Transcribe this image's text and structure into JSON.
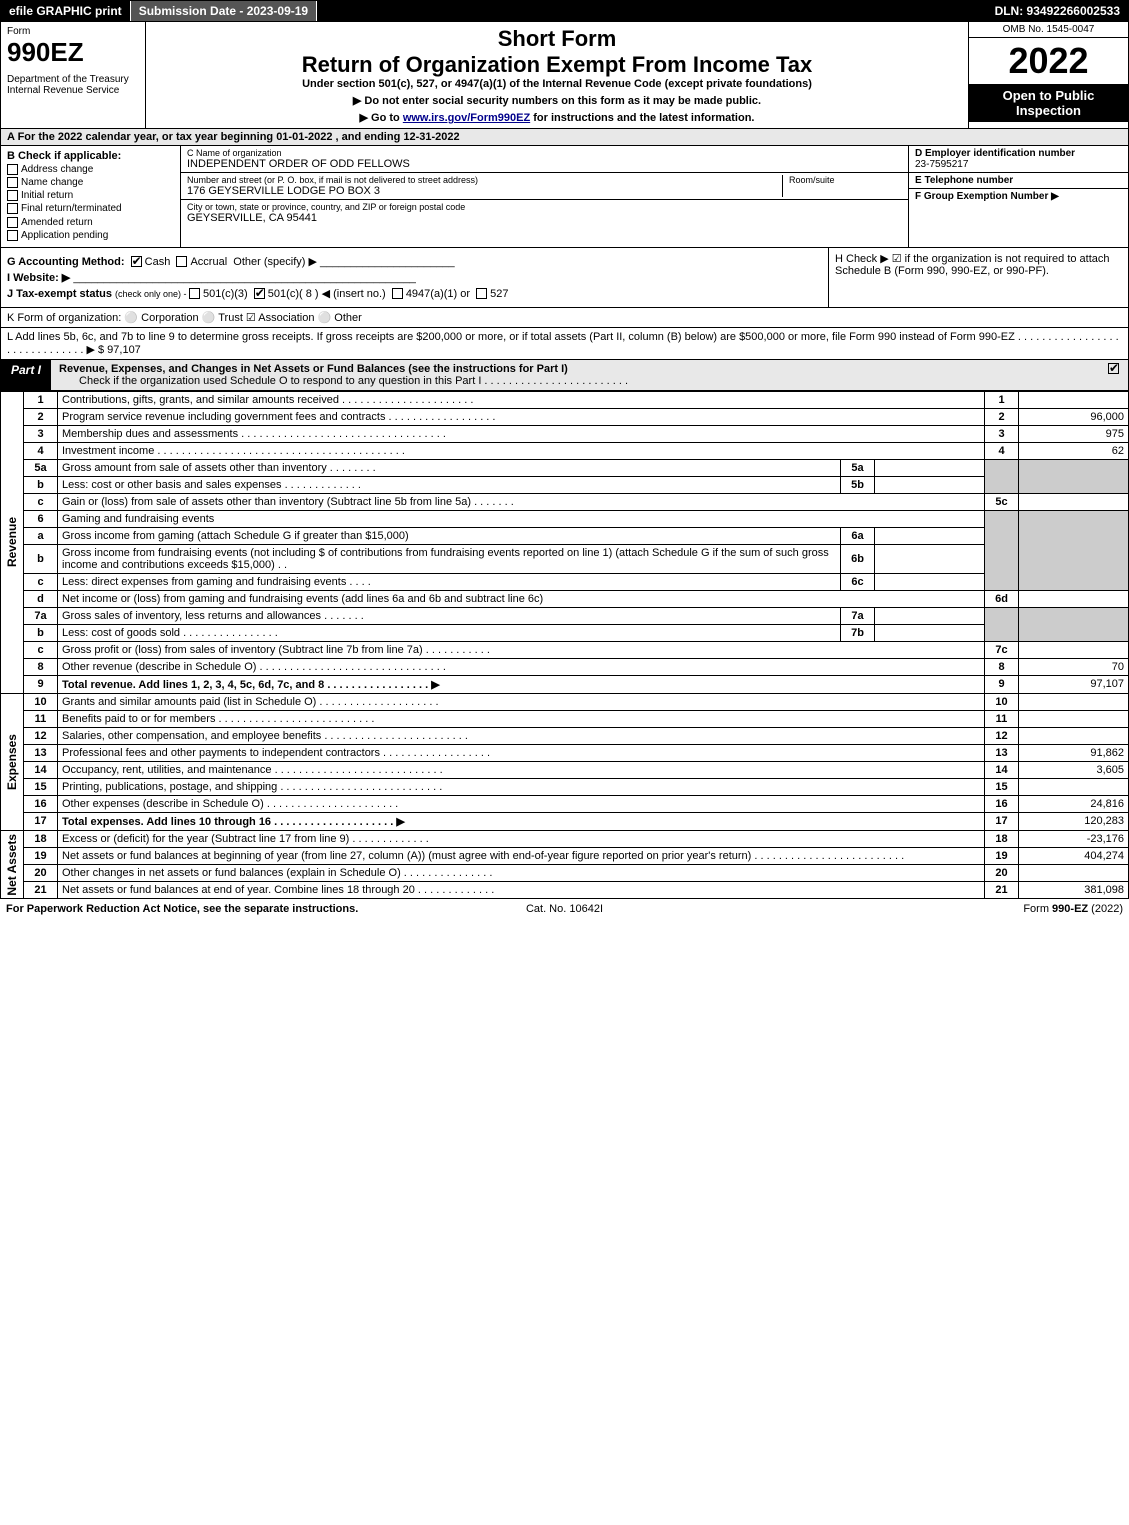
{
  "topbar": {
    "efile": "efile GRAPHIC print",
    "submission": "Submission Date - 2023-09-19",
    "dln": "DLN: 93492266002533"
  },
  "header": {
    "form_label": "Form",
    "form_no": "990EZ",
    "dept": "Department of the Treasury\nInternal Revenue Service",
    "short": "Short Form",
    "title": "Return of Organization Exempt From Income Tax",
    "sub": "Under section 501(c), 527, or 4947(a)(1) of the Internal Revenue Code (except private foundations)",
    "note1": "▶ Do not enter social security numbers on this form as it may be made public.",
    "note2_pre": "▶ Go to ",
    "note2_link": "www.irs.gov/Form990EZ",
    "note2_post": " for instructions and the latest information.",
    "omb": "OMB No. 1545-0047",
    "year": "2022",
    "open": "Open to Public Inspection"
  },
  "rowA": "A  For the 2022 calendar year, or tax year beginning 01-01-2022 , and ending 12-31-2022",
  "colB": {
    "hdr": "B  Check if applicable:",
    "opts": [
      "Address change",
      "Name change",
      "Initial return",
      "Final return/terminated",
      "Amended return",
      "Application pending"
    ]
  },
  "colC": {
    "name_lab": "C Name of organization",
    "name": "INDEPENDENT ORDER OF ODD FELLOWS",
    "addr_lab": "Number and street (or P. O. box, if mail is not delivered to street address)",
    "addr": "176 GEYSERVILLE LODGE PO BOX 3",
    "room_lab": "Room/suite",
    "city_lab": "City or town, state or province, country, and ZIP or foreign postal code",
    "city": "GEYSERVILLE, CA  95441"
  },
  "colD": {
    "ein_lab": "D Employer identification number",
    "ein": "23-7595217",
    "tel_lab": "E Telephone number",
    "grp_lab": "F Group Exemption Number    ▶"
  },
  "rowG": {
    "acct": "G Accounting Method:",
    "cash": "Cash",
    "accrual": "Accrual",
    "other": "Other (specify) ▶",
    "website": "I Website: ▶",
    "taxexempt_pre": "J Tax-exempt status ",
    "taxexempt_sub": "(check only one) - ",
    "opt1": "501(c)(3)",
    "opt2": "501(c)( 8 ) ◀ (insert no.)",
    "opt3": "4947(a)(1) or",
    "opt4": "527"
  },
  "rowH": "H  Check ▶  ☑  if the organization is not required to attach Schedule B (Form 990, 990-EZ, or 990-PF).",
  "rowK": "K Form of organization:   ⚪ Corporation   ⚪ Trust   ☑ Association   ⚪ Other",
  "rowL": {
    "text": "L Add lines 5b, 6c, and 7b to line 9 to determine gross receipts. If gross receipts are $200,000 or more, or if total assets (Part II, column (B) below) are $500,000 or more, file Form 990 instead of Form 990-EZ . . . . . . . . . . . . . . . . . . . . . . . . . . . . . . ▶ $",
    "amt": "97,107"
  },
  "part1": {
    "tag": "Part I",
    "title": "Revenue, Expenses, and Changes in Net Assets or Fund Balances (see the instructions for Part I)",
    "sub": "Check if the organization used Schedule O to respond to any question in this Part I . . . . . . . . . . . . . . . . . . . . . . . ."
  },
  "sides": {
    "revenue": "Revenue",
    "expenses": "Expenses",
    "netassets": "Net Assets"
  },
  "lines": {
    "1": {
      "n": "1",
      "d": "Contributions, gifts, grants, and similar amounts received . . . . . . . . . . . . . . . . . . . . . .",
      "b": "1",
      "a": ""
    },
    "2": {
      "n": "2",
      "d": "Program service revenue including government fees and contracts . . . . . . . . . . . . . . . . . .",
      "b": "2",
      "a": "96,000"
    },
    "3": {
      "n": "3",
      "d": "Membership dues and assessments . . . . . . . . . . . . . . . . . . . . . . . . . . . . . . . . . .",
      "b": "3",
      "a": "975"
    },
    "4": {
      "n": "4",
      "d": "Investment income . . . . . . . . . . . . . . . . . . . . . . . . . . . . . . . . . . . . . . . . .",
      "b": "4",
      "a": "62"
    },
    "5a": {
      "n": "5a",
      "d": "Gross amount from sale of assets other than inventory . . . . . . . .",
      "ib": "5a",
      "ia": ""
    },
    "5b": {
      "n": "b",
      "d": "Less: cost or other basis and sales expenses . . . . . . . . . . . . .",
      "ib": "5b",
      "ia": ""
    },
    "5c": {
      "n": "c",
      "d": "Gain or (loss) from sale of assets other than inventory (Subtract line 5b from line 5a) . . . . . . .",
      "b": "5c",
      "a": ""
    },
    "6": {
      "n": "6",
      "d": "Gaming and fundraising events"
    },
    "6a": {
      "n": "a",
      "d": "Gross income from gaming (attach Schedule G if greater than $15,000)",
      "ib": "6a",
      "ia": ""
    },
    "6b": {
      "n": "b",
      "d": "Gross income from fundraising events (not including $                       of contributions from fundraising events reported on line 1) (attach Schedule G if the sum of such gross income and contributions exceeds $15,000)    .  .",
      "ib": "6b",
      "ia": ""
    },
    "6c": {
      "n": "c",
      "d": "Less: direct expenses from gaming and fundraising events    .  .  .  .",
      "ib": "6c",
      "ia": ""
    },
    "6d": {
      "n": "d",
      "d": "Net income or (loss) from gaming and fundraising events (add lines 6a and 6b and subtract line 6c)",
      "b": "6d",
      "a": ""
    },
    "7a": {
      "n": "7a",
      "d": "Gross sales of inventory, less returns and allowances . . . . . . .",
      "ib": "7a",
      "ia": ""
    },
    "7b": {
      "n": "b",
      "d": "Less: cost of goods sold          .  .  .  .  .  .  .  .  .  .  .  .  .  .  .  .",
      "ib": "7b",
      "ia": ""
    },
    "7c": {
      "n": "c",
      "d": "Gross profit or (loss) from sales of inventory (Subtract line 7b from line 7a) . . . . . . . . . . .",
      "b": "7c",
      "a": ""
    },
    "8": {
      "n": "8",
      "d": "Other revenue (describe in Schedule O) . . . . . . . . . . . . . . . . . . . . . . . . . . . . . . .",
      "b": "8",
      "a": "70"
    },
    "9": {
      "n": "9",
      "d": "Total revenue. Add lines 1, 2, 3, 4, 5c, 6d, 7c, and 8   .  .  .  .  .  .  .  .  .  .  .  .  .  .  .  .  .  ▶",
      "b": "9",
      "a": "97,107"
    },
    "10": {
      "n": "10",
      "d": "Grants and similar amounts paid (list in Schedule O) .  .  .  .  .  .  .  .  .  .  .  .  .  .  .  .  .  .  .  .",
      "b": "10",
      "a": ""
    },
    "11": {
      "n": "11",
      "d": "Benefits paid to or for members       .  .  .  .  .  .  .  .  .  .  .  .  .  .  .  .  .  .  .  .  .  .  .  .  .  .",
      "b": "11",
      "a": ""
    },
    "12": {
      "n": "12",
      "d": "Salaries, other compensation, and employee benefits . . . . . . . . . . . . . . . . . . . . . . . .",
      "b": "12",
      "a": ""
    },
    "13": {
      "n": "13",
      "d": "Professional fees and other payments to independent contractors . . . . . . . . . . . . . . . . . .",
      "b": "13",
      "a": "91,862"
    },
    "14": {
      "n": "14",
      "d": "Occupancy, rent, utilities, and maintenance . . . . . . . . . . . . . . . . . . . . . . . . . . . .",
      "b": "14",
      "a": "3,605"
    },
    "15": {
      "n": "15",
      "d": "Printing, publications, postage, and shipping . . . . . . . . . . . . . . . . . . . . . . . . . . .",
      "b": "15",
      "a": ""
    },
    "16": {
      "n": "16",
      "d": "Other expenses (describe in Schedule O)     .  .  .  .  .  .  .  .  .  .  .  .  .  .  .  .  .  .  .  .  .  .",
      "b": "16",
      "a": "24,816"
    },
    "17": {
      "n": "17",
      "d": "Total expenses. Add lines 10 through 16     .  .  .  .  .  .  .  .  .  .  .  .  .  .  .  .  .  .  .  .  ▶",
      "b": "17",
      "a": "120,283"
    },
    "18": {
      "n": "18",
      "d": "Excess or (deficit) for the year (Subtract line 17 from line 9)        .  .  .  .  .  .  .  .  .  .  .  .  .",
      "b": "18",
      "a": "-23,176"
    },
    "19": {
      "n": "19",
      "d": "Net assets or fund balances at beginning of year (from line 27, column (A)) (must agree with end-of-year figure reported on prior year's return) . . . . . . . . . . . . . . . . . . . . . . . . .",
      "b": "19",
      "a": "404,274"
    },
    "20": {
      "n": "20",
      "d": "Other changes in net assets or fund balances (explain in Schedule O) . . . . . . . . . . . . . . .",
      "b": "20",
      "a": ""
    },
    "21": {
      "n": "21",
      "d": "Net assets or fund balances at end of year. Combine lines 18 through 20 . . . . . . . . . . . . .",
      "b": "21",
      "a": "381,098"
    }
  },
  "footer": {
    "left": "For Paperwork Reduction Act Notice, see the separate instructions.",
    "mid": "Cat. No. 10642I",
    "right_pre": "Form ",
    "right_form": "990-EZ",
    "right_post": " (2022)"
  }
}
